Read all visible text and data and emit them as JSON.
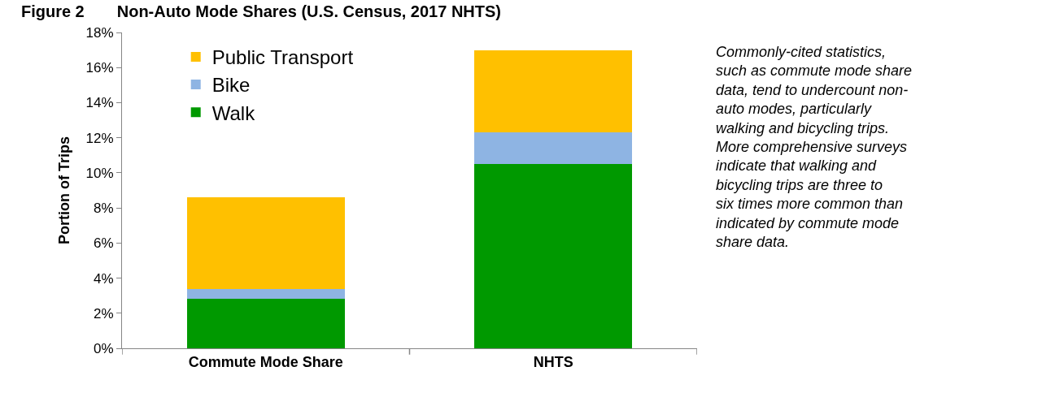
{
  "chart_data": {
    "type": "bar",
    "stacked": true,
    "title": "Figure 2  Non-Auto Mode Shares (U.S. Census, 2017 NHTS)",
    "ylabel": "Portion of Trips",
    "categories": [
      "Commute Mode Share",
      "NHTS"
    ],
    "series": [
      {
        "name": "Walk",
        "color": "#009900",
        "values": [
          2.8,
          10.5
        ]
      },
      {
        "name": "Bike",
        "color": "#8eb4e3",
        "values": [
          0.6,
          1.8
        ]
      },
      {
        "name": "Public Transport",
        "color": "#ffc000",
        "values": [
          5.2,
          4.7
        ]
      }
    ],
    "ylim": [
      0,
      18
    ],
    "yticks": [
      {
        "value": 0,
        "label": "0%"
      },
      {
        "value": 2,
        "label": "2%"
      },
      {
        "value": 4,
        "label": "4%"
      },
      {
        "value": 6,
        "label": "6%"
      },
      {
        "value": 8,
        "label": "8%"
      },
      {
        "value": 10,
        "label": "10%"
      },
      {
        "value": 12,
        "label": "12%"
      },
      {
        "value": 14,
        "label": "14%"
      },
      {
        "value": 16,
        "label": "16%"
      },
      {
        "value": 18,
        "label": "18%"
      }
    ],
    "legend": "top left",
    "annotations": [
      "Commonly-cited statistics, such as commute mode share data, tend to undercount non-auto modes, particularly walking and bicycling trips. More comprehensive surveys indicate that walking and bicycling trips are three to six times more common than indicated by commute mode share data."
    ]
  }
}
